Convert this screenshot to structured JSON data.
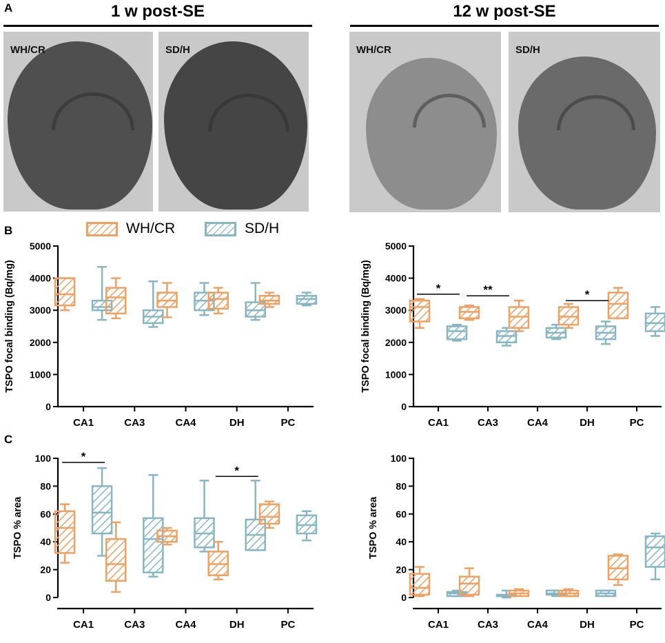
{
  "panel_labels": {
    "a": "A",
    "b": "B",
    "c": "C"
  },
  "headers": {
    "left": "1 w post-SE",
    "right": "12 w post-SE"
  },
  "images": [
    {
      "label": "WH/CR",
      "tone": "#4f4f4f"
    },
    {
      "label": "SD/H",
      "tone": "#454545"
    },
    {
      "label": "WH/CR",
      "tone": "#8d8d8d"
    },
    {
      "label": "SD/H",
      "tone": "#6a6a6a"
    }
  ],
  "legend": [
    {
      "name": "WH/CR",
      "color": "#f0a060"
    },
    {
      "name": "SD/H",
      "color": "#86b6c4"
    }
  ],
  "colors": {
    "whcr": "#f0a060",
    "sdh": "#86b6c4"
  },
  "chart_data": [
    {
      "id": "b-left",
      "type": "box",
      "ylabel": "TSPO focal binding (Bq/mg)",
      "ylim": [
        0,
        5000
      ],
      "yticks": [
        0,
        1000,
        2000,
        3000,
        4000,
        5000
      ],
      "categories": [
        "CA1",
        "CA3",
        "CA4",
        "DH",
        "PC"
      ],
      "series": [
        {
          "name": "WH/CR",
          "boxes": [
            {
              "min": 3000,
              "q1": 3150,
              "median": 3500,
              "q3": 4000,
              "max": 4000
            },
            {
              "min": 2750,
              "q1": 2900,
              "median": 3400,
              "q3": 3700,
              "max": 4000
            },
            {
              "min": 2780,
              "q1": 3100,
              "median": 3300,
              "q3": 3550,
              "max": 3850
            },
            {
              "min": 2900,
              "q1": 3050,
              "median": 3350,
              "q3": 3550,
              "max": 3700
            },
            {
              "min": 3100,
              "q1": 3200,
              "median": 3300,
              "q3": 3450,
              "max": 3550
            }
          ]
        },
        {
          "name": "SD/H",
          "boxes": [
            {
              "min": 2700,
              "q1": 3000,
              "median": 3100,
              "q3": 3300,
              "max": 4350
            },
            {
              "min": 2480,
              "q1": 2600,
              "median": 2800,
              "q3": 3000,
              "max": 3900
            },
            {
              "min": 2850,
              "q1": 3000,
              "median": 3300,
              "q3": 3550,
              "max": 3850
            },
            {
              "min": 2700,
              "q1": 2800,
              "median": 3000,
              "q3": 3250,
              "max": 3850
            },
            {
              "min": 3150,
              "q1": 3200,
              "median": 3350,
              "q3": 3450,
              "max": 3550
            }
          ]
        }
      ],
      "significance": []
    },
    {
      "id": "b-right",
      "type": "box",
      "ylabel": "TSPO focal binding (Bq/mg)",
      "ylim": [
        0,
        5000
      ],
      "yticks": [
        0,
        1000,
        2000,
        3000,
        4000,
        5000
      ],
      "categories": [
        "CA1",
        "CA3",
        "CA4",
        "DH",
        "PC"
      ],
      "series": [
        {
          "name": "WH/CR",
          "boxes": [
            {
              "min": 2450,
              "q1": 2650,
              "median": 3100,
              "q3": 3300,
              "max": 3350
            },
            {
              "min": 2700,
              "q1": 2750,
              "median": 2950,
              "q3": 3100,
              "max": 3150
            },
            {
              "min": 2350,
              "q1": 2450,
              "median": 2800,
              "q3": 3100,
              "max": 3300
            },
            {
              "min": 2450,
              "q1": 2550,
              "median": 2800,
              "q3": 3100,
              "max": 3200
            },
            {
              "min": 2750,
              "q1": 2750,
              "median": 3200,
              "q3": 3550,
              "max": 3700
            }
          ]
        },
        {
          "name": "SD/H",
          "boxes": [
            {
              "min": 2050,
              "q1": 2100,
              "median": 2350,
              "q3": 2500,
              "max": 2550
            },
            {
              "min": 1900,
              "q1": 2000,
              "median": 2200,
              "q3": 2350,
              "max": 2450
            },
            {
              "min": 2100,
              "q1": 2150,
              "median": 2300,
              "q3": 2450,
              "max": 2550
            },
            {
              "min": 1950,
              "q1": 2100,
              "median": 2300,
              "q3": 2500,
              "max": 2650
            },
            {
              "min": 2200,
              "q1": 2350,
              "median": 2600,
              "q3": 2900,
              "max": 3100
            }
          ]
        }
      ],
      "significance": [
        {
          "category": 0,
          "label": "*",
          "value": 3500
        },
        {
          "category": 1,
          "label": "**",
          "value": 3450
        },
        {
          "category": 3,
          "label": "*",
          "value": 3300
        }
      ]
    },
    {
      "id": "c-left",
      "type": "box",
      "ylabel": "TSPO % area",
      "ylim": [
        0,
        100
      ],
      "yticks": [
        0,
        20,
        40,
        60,
        80,
        100
      ],
      "categories": [
        "CA1",
        "CA3",
        "CA4",
        "DH",
        "PC"
      ],
      "series": [
        {
          "name": "WH/CR",
          "boxes": [
            {
              "min": 25,
              "q1": 32,
              "median": 50,
              "q3": 62,
              "max": 67
            },
            {
              "min": 4,
              "q1": 12,
              "median": 24,
              "q3": 42,
              "max": 54
            },
            {
              "min": 38,
              "q1": 40,
              "median": 44,
              "q3": 48,
              "max": 50
            },
            {
              "min": 13,
              "q1": 16,
              "median": 24,
              "q3": 33,
              "max": 40
            },
            {
              "min": 50,
              "q1": 53,
              "median": 58,
              "q3": 67,
              "max": 69
            }
          ]
        },
        {
          "name": "SD/H",
          "boxes": [
            {
              "min": 30,
              "q1": 46,
              "median": 61,
              "q3": 80,
              "max": 93
            },
            {
              "min": 15,
              "q1": 18,
              "median": 42,
              "q3": 57,
              "max": 88
            },
            {
              "min": 33,
              "q1": 36,
              "median": 46,
              "q3": 57,
              "max": 84
            },
            {
              "min": 34,
              "q1": 34,
              "median": 45,
              "q3": 56,
              "max": 84
            },
            {
              "min": 41,
              "q1": 46,
              "median": 52,
              "q3": 59,
              "max": 62
            }
          ]
        }
      ],
      "significance": [
        {
          "category": 0,
          "label": "*",
          "value": 97
        },
        {
          "category": 3,
          "label": "*",
          "value": 87
        }
      ]
    },
    {
      "id": "c-right",
      "type": "box",
      "ylabel": "TSPO % area",
      "ylim": [
        0,
        100
      ],
      "yticks": [
        0,
        20,
        40,
        60,
        80,
        100
      ],
      "categories": [
        "CA1",
        "CA3",
        "CA4",
        "DH",
        "PC"
      ],
      "series": [
        {
          "name": "WH/CR",
          "boxes": [
            {
              "min": 1,
              "q1": 2,
              "median": 7,
              "q3": 17,
              "max": 22
            },
            {
              "min": 1,
              "q1": 2,
              "median": 10,
              "q3": 15,
              "max": 21
            },
            {
              "min": 1,
              "q1": 1,
              "median": 3,
              "q3": 5,
              "max": 6
            },
            {
              "min": 1,
              "q1": 1,
              "median": 3,
              "q3": 5,
              "max": 6
            },
            {
              "min": 9,
              "q1": 13,
              "median": 21,
              "q3": 30,
              "max": 31
            }
          ]
        },
        {
          "name": "SD/H",
          "boxes": [
            {
              "min": 1,
              "q1": 1,
              "median": 3,
              "q3": 4,
              "max": 5
            },
            {
              "min": 0,
              "q1": 1,
              "median": 1,
              "q3": 2,
              "max": 5
            },
            {
              "min": 1,
              "q1": 2,
              "median": 3,
              "q3": 5,
              "max": 5
            },
            {
              "min": 1,
              "q1": 1,
              "median": 3,
              "q3": 5,
              "max": 5
            },
            {
              "min": 13,
              "q1": 22,
              "median": 36,
              "q3": 44,
              "max": 46
            }
          ]
        }
      ],
      "significance": []
    }
  ]
}
